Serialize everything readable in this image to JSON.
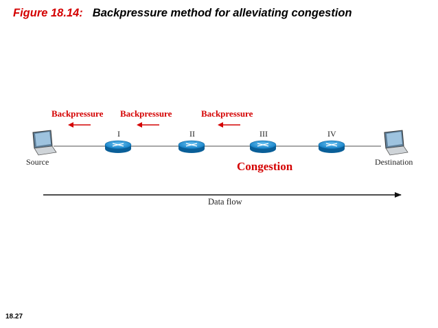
{
  "title": {
    "figure_number": "Figure 18.14:",
    "caption": "Backpressure method for alleviating congestion"
  },
  "slide_number": "18.27",
  "diagram": {
    "backpressure_labels": [
      "Backpressure",
      "Backpressure",
      "Backpressure"
    ],
    "router_labels": [
      "I",
      "II",
      "III",
      "IV"
    ],
    "source_label": "Source",
    "destination_label": "Destination",
    "congestion_label": "Congestion",
    "data_flow_label": "Data flow"
  },
  "colors": {
    "accent_red": "#d40000",
    "router_blue": "#1a8fd6",
    "line_gray": "#8a8a8a"
  }
}
